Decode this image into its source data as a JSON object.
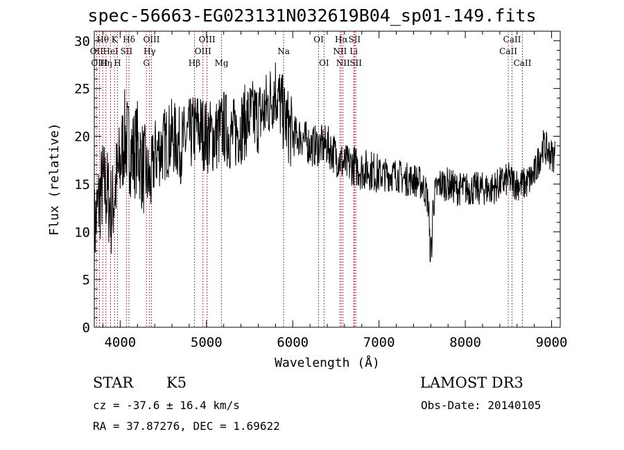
{
  "header": {
    "title": "spec-56663-EG023131N032619B04_sp01-149.fits"
  },
  "chart_data": {
    "type": "line",
    "title": "spec-56663-EG023131N032619B04_sp01-149.fits",
    "xlabel": "Wavelength (Å)",
    "ylabel": "Flux (relative)",
    "xlim": [
      3700,
      9100
    ],
    "ylim": [
      0,
      31
    ],
    "xticks": [
      4000,
      5000,
      6000,
      7000,
      8000,
      9000
    ],
    "yticks": [
      0,
      5,
      10,
      15,
      20,
      25,
      30
    ],
    "series": [
      {
        "name": "flux",
        "x": [
          3700,
          3750,
          3800,
          3850,
          3900,
          3950,
          4000,
          4050,
          4100,
          4150,
          4200,
          4250,
          4300,
          4350,
          4400,
          4500,
          4600,
          4700,
          4800,
          4900,
          5000,
          5100,
          5200,
          5300,
          5400,
          5500,
          5600,
          5700,
          5800,
          5900,
          6000,
          6100,
          6200,
          6300,
          6400,
          6500,
          6600,
          6700,
          6800,
          6900,
          7000,
          7100,
          7200,
          7300,
          7400,
          7500,
          7550,
          7600,
          7650,
          7700,
          7800,
          7900,
          8000,
          8100,
          8200,
          8300,
          8400,
          8500,
          8600,
          8700,
          8800,
          8900,
          9000
        ],
        "y": [
          10,
          13,
          15,
          14,
          12,
          15,
          17,
          20,
          19,
          18,
          19,
          17,
          16,
          15,
          18,
          19,
          20,
          19,
          20,
          21,
          20,
          20,
          21,
          20,
          21,
          22,
          22,
          23,
          25,
          22,
          20,
          20,
          19,
          19,
          19,
          18,
          17,
          17,
          16.5,
          16.5,
          16,
          16,
          16,
          15.5,
          15.5,
          15,
          14,
          11,
          14,
          15,
          15,
          14.5,
          14.5,
          14.5,
          14.5,
          14.5,
          15,
          15.5,
          15,
          15,
          16,
          19,
          18
        ]
      }
    ],
    "lines": [
      {
        "label": "OII",
        "wl": 3727,
        "row": 2
      },
      {
        "label": "OIII",
        "wl": 3760,
        "row": 3
      },
      {
        "label": "Hθ",
        "wl": 3798,
        "row": 1
      },
      {
        "label": "Hη",
        "wl": 3835,
        "row": 3
      },
      {
        "label": "HeI",
        "wl": 3889,
        "row": 2
      },
      {
        "label": "K",
        "wl": 3934,
        "row": 1
      },
      {
        "label": "H",
        "wl": 3969,
        "row": 3
      },
      {
        "label": "SII",
        "wl": 4072,
        "row": 2
      },
      {
        "label": "Hδ",
        "wl": 4102,
        "row": 1
      },
      {
        "label": "G",
        "wl": 4304,
        "row": 3
      },
      {
        "label": "Hγ",
        "wl": 4341,
        "row": 2
      },
      {
        "label": "OIII",
        "wl": 4363,
        "row": 1
      },
      {
        "label": "Hβ",
        "wl": 4861,
        "row": 3
      },
      {
        "label": "OIII",
        "wl": 4959,
        "row": 2
      },
      {
        "label": "OIII",
        "wl": 5007,
        "row": 1
      },
      {
        "label": "Mg",
        "wl": 5175,
        "row": 3
      },
      {
        "label": "Na",
        "wl": 5894,
        "row": 2
      },
      {
        "label": "OI",
        "wl": 6300,
        "row": 1
      },
      {
        "label": "OI",
        "wl": 6363,
        "row": 3
      },
      {
        "label": "NII",
        "wl": 6548,
        "row": 2
      },
      {
        "label": "Hα",
        "wl": 6563,
        "row": 1
      },
      {
        "label": "NII",
        "wl": 6583,
        "row": 3
      },
      {
        "label": "Li",
        "wl": 6707,
        "row": 2
      },
      {
        "label": "SII",
        "wl": 6716,
        "row": 1
      },
      {
        "label": "SII",
        "wl": 6731,
        "row": 3
      },
      {
        "label": "CaII",
        "wl": 8498,
        "row": 2
      },
      {
        "label": "CaII",
        "wl": 8542,
        "row": 1
      },
      {
        "label": "CaII",
        "wl": 8662,
        "row": 3
      }
    ]
  },
  "info": {
    "class": "STAR",
    "subclass": "K5",
    "survey": "LAMOST DR3",
    "cz": "cz = -37.6 ± 16.4 km/s",
    "obs_date": "Obs-Date: 20140105",
    "radec": "RA =  37.87276, DEC =   1.69622"
  },
  "colors": {
    "line_marker": "#b22222",
    "spectrum": "#000000"
  }
}
